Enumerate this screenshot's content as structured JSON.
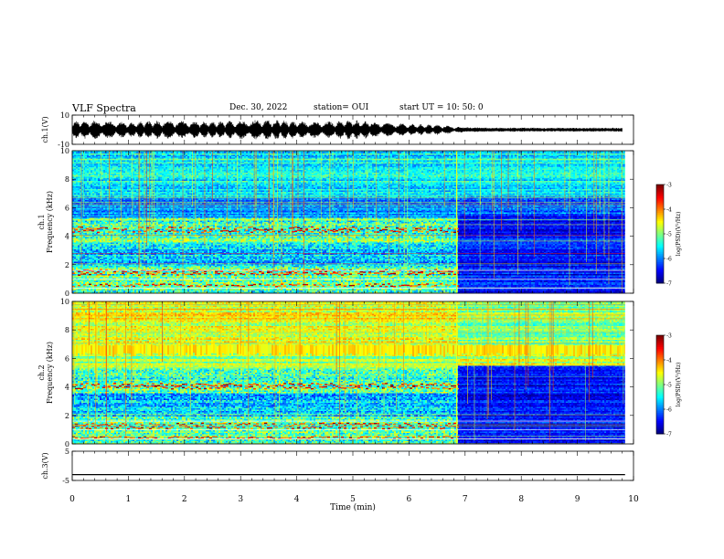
{
  "header": {
    "title": "VLF Spectra",
    "date": "Dec. 30, 2022",
    "station": "station= OUI",
    "start": "start  UT  =   10: 50: 0"
  },
  "chart_data": [
    {
      "type": "line",
      "panel": "waveform-ch1",
      "ylabel": "ch.1(V)",
      "ylim": [
        -10,
        10
      ],
      "xlim": [
        0,
        10
      ],
      "ytick_labels": [
        "10",
        "-10"
      ],
      "envelope": {
        "x": [
          0,
          0.5,
          1,
          1.5,
          2,
          2.5,
          3,
          3.5,
          4,
          4.5,
          5,
          5.5,
          6,
          6.5,
          7,
          7.5,
          8,
          8.5,
          9,
          9.5,
          9.8
        ],
        "amplitude": [
          6,
          6.5,
          5,
          6.5,
          6,
          5.5,
          6.5,
          7,
          6,
          5.5,
          7,
          5,
          4,
          3.5,
          1.8,
          1.5,
          1.5,
          1.4,
          1.4,
          1.4,
          1.4
        ]
      }
    },
    {
      "type": "heatmap",
      "panel": "spectrogram-ch1",
      "ylabel_line1": "ch.1",
      "ylabel_line2": "Frequency  (kHz)",
      "ylim": [
        0,
        10
      ],
      "xlim": [
        0,
        10
      ],
      "data_xmax": 9.85,
      "ytick_labels": [
        "0",
        "2",
        "4",
        "6",
        "8",
        "10"
      ],
      "regime_change_min": 6.85,
      "colorbar": {
        "label": "log(PSD)(V²/Hz)",
        "range": [
          -7,
          -3
        ],
        "tick_labels": [
          "-3",
          "-4",
          "-5",
          "-6",
          "-7"
        ]
      }
    },
    {
      "type": "heatmap",
      "panel": "spectrogram-ch2",
      "ylabel_line1": "ch.2",
      "ylabel_line2": "Frequency  (kHz)",
      "ylim": [
        0,
        10
      ],
      "xlim": [
        0,
        10
      ],
      "data_xmax": 9.85,
      "ytick_labels": [
        "0",
        "2",
        "4",
        "6",
        "8",
        "10"
      ],
      "regime_change_min": 6.85,
      "colorbar": {
        "label": "log(PSD)(V²/Hz)",
        "range": [
          -7,
          -3
        ],
        "tick_labels": [
          "-3",
          "-4",
          "-5",
          "-6",
          "-7"
        ]
      }
    },
    {
      "type": "line",
      "panel": "waveform-ch3",
      "ylabel": "ch.3(V)",
      "ylim": [
        -5,
        5
      ],
      "xlim": [
        0,
        10
      ],
      "ytick_labels": [
        "5",
        "-5"
      ],
      "x": [
        0,
        9.85
      ],
      "y": [
        -3,
        -3
      ]
    }
  ],
  "xaxis": {
    "label": "Time  (min)",
    "tick_labels": [
      "0",
      "1",
      "2",
      "3",
      "4",
      "5",
      "6",
      "7",
      "8",
      "9",
      "10"
    ]
  }
}
